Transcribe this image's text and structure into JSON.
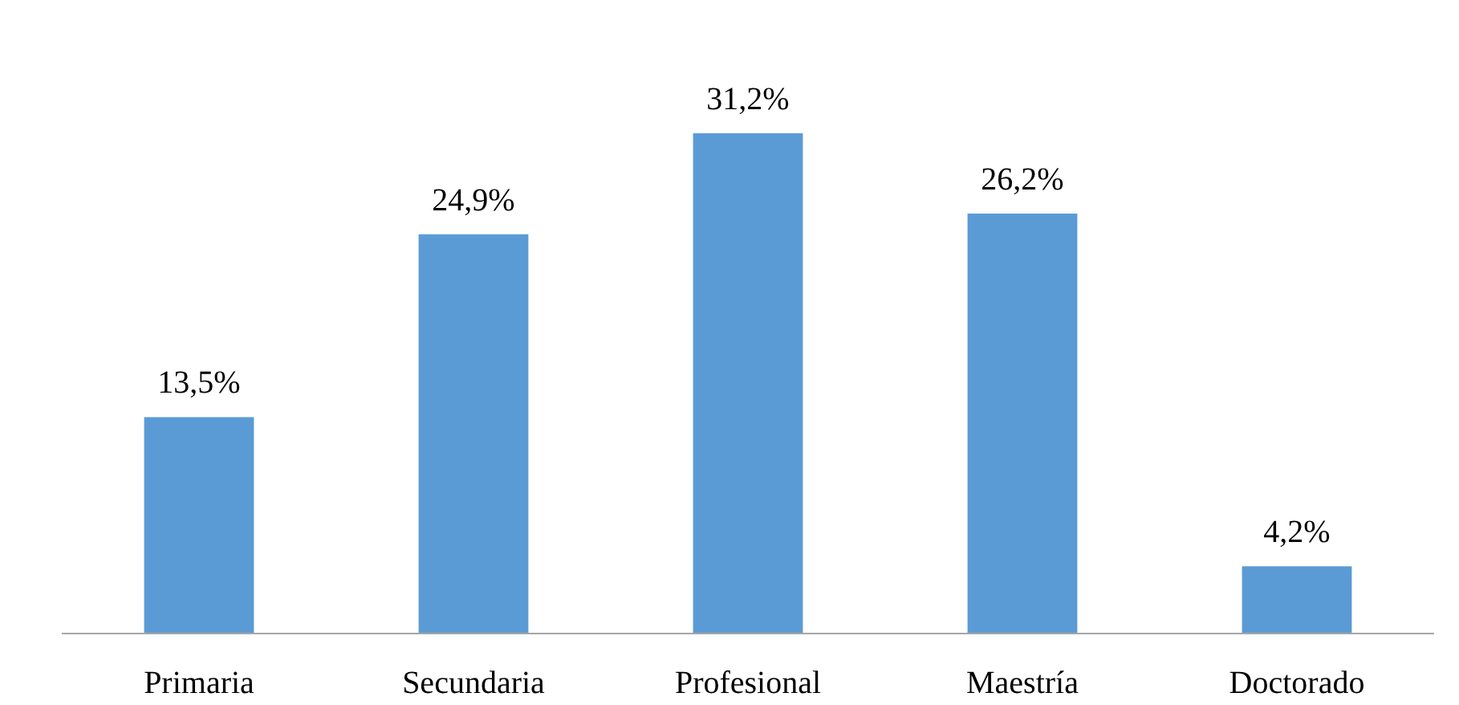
{
  "chart_data": {
    "type": "bar",
    "categories": [
      "Primaria",
      "Secundaria",
      "Profesional",
      "Maestría",
      "Doctorado"
    ],
    "values": [
      13.5,
      24.9,
      31.2,
      26.2,
      4.2
    ],
    "value_labels": [
      "13,5%",
      "24,9%",
      "31,2%",
      "26,2%",
      "4,2%"
    ],
    "color": "#5b9bd5",
    "grid": false
  }
}
